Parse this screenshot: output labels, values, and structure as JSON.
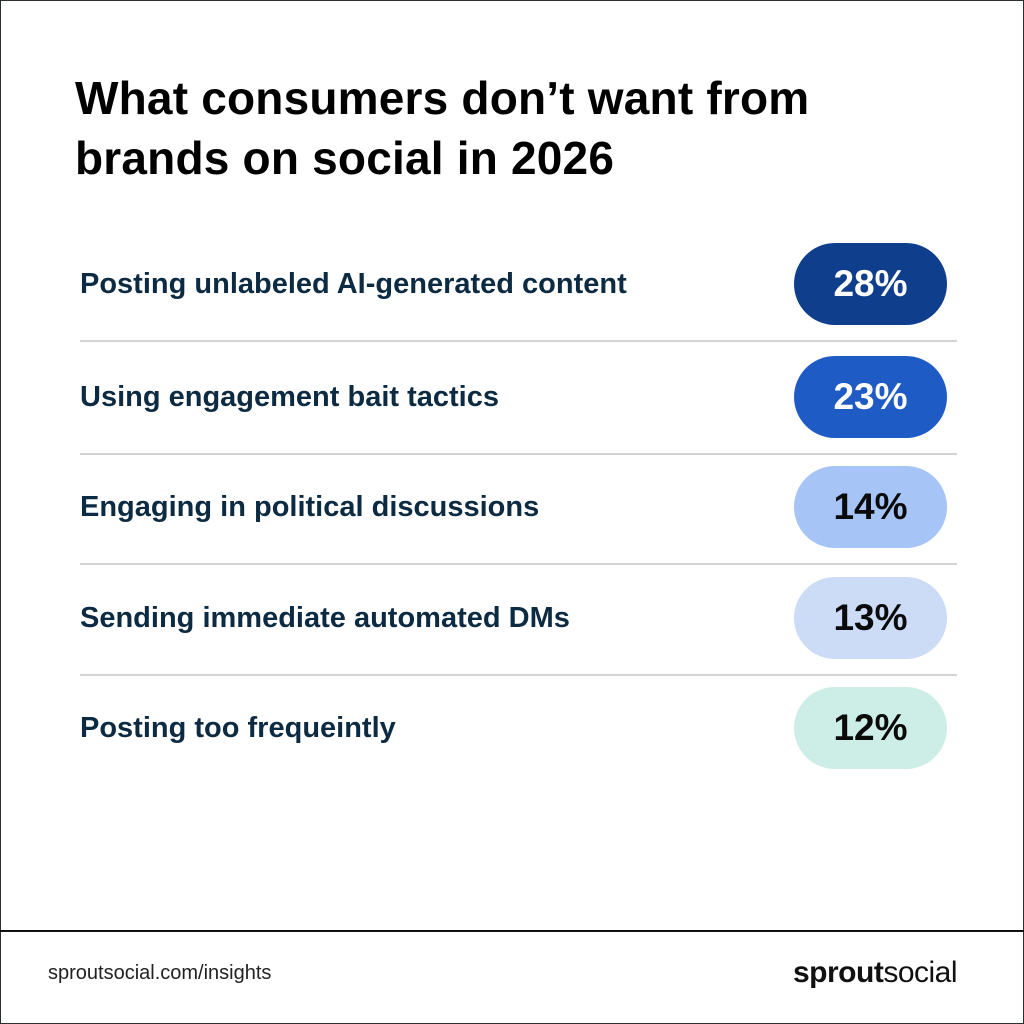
{
  "title": "What consumers don’t want from brands on social in 2026",
  "chart_data": {
    "type": "table",
    "title": "What consumers don’t want from brands on social in 2026",
    "categories": [
      "Posting unlabeled AI-generated content",
      "Using engagement bait tactics",
      "Engaging in political discussions",
      "Sending immediate automated DMs",
      "Posting too frequeintly"
    ],
    "values": [
      28,
      23,
      14,
      13,
      12
    ],
    "value_labels": [
      "28%",
      "23%",
      "14%",
      "13%",
      "12%"
    ],
    "pill_colors": [
      "#0f3f8c",
      "#1f5bc4",
      "#a6c4f5",
      "#ccdcf7",
      "#cdeee6"
    ],
    "text_colors": [
      "#ffffff",
      "#ffffff",
      "#0a0a0a",
      "#0a0a0a",
      "#0a0a0a"
    ]
  },
  "footer": {
    "url": "sproutsocial.com/insights",
    "logo_bold": "sprout",
    "logo_light": "social"
  }
}
